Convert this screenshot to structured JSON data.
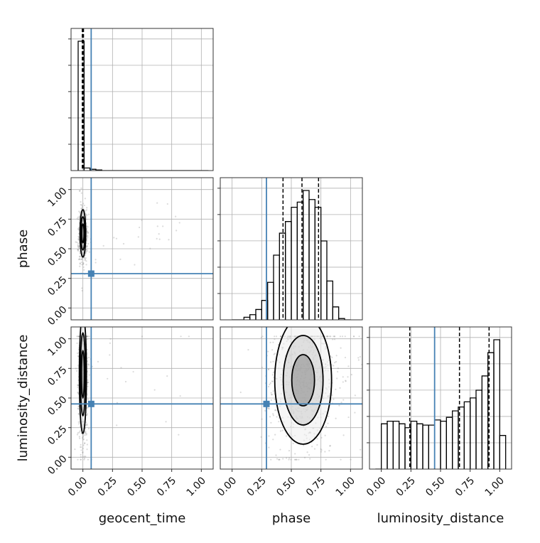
{
  "chart_data": {
    "type": "corner",
    "parameters": [
      "geocent_time",
      "phase",
      "luminosity_distance"
    ],
    "tick_values": [
      0.0,
      0.25,
      0.5,
      0.75,
      1.0
    ],
    "tick_labels": [
      "0.00",
      "0.25",
      "0.50",
      "0.75",
      "1.00"
    ],
    "axis_range": [
      -0.1,
      1.1
    ],
    "grid": true,
    "truth_color": "#4682b4",
    "hist_color": "#000000",
    "truths": {
      "geocent_time": 0.07,
      "phase": 0.29,
      "luminosity_distance": 0.45
    },
    "quantiles": {
      "geocent_time": [
        -0.005,
        0.0,
        0.005
      ],
      "phase": [
        0.43,
        0.59,
        0.73
      ],
      "luminosity_distance": [
        0.24,
        0.66,
        0.91
      ]
    },
    "histograms": {
      "geocent_time": {
        "edges": [
          -0.04,
          0.01,
          0.06,
          0.11,
          0.16,
          0.21,
          0.26,
          0.31,
          0.36,
          0.41,
          0.46,
          0.51,
          0.56,
          0.61,
          0.66,
          0.71,
          0.76,
          0.81,
          0.86,
          0.91,
          1.06
        ],
        "counts": [
          1.0,
          0.02,
          0.01,
          0.005,
          0,
          0,
          0,
          0,
          0,
          0,
          0,
          0,
          0,
          0,
          0,
          0,
          0,
          0,
          0,
          0
        ]
      },
      "phase": {
        "edges": [
          0.0,
          0.05,
          0.1,
          0.15,
          0.2,
          0.25,
          0.3,
          0.35,
          0.4,
          0.45,
          0.5,
          0.55,
          0.6,
          0.65,
          0.7,
          0.75,
          0.8,
          0.85,
          0.9,
          0.95,
          1.0
        ],
        "counts": [
          0,
          0,
          0.02,
          0.04,
          0.08,
          0.15,
          0.29,
          0.5,
          0.67,
          0.76,
          0.87,
          0.91,
          1.0,
          0.93,
          0.87,
          0.61,
          0.3,
          0.1,
          0.01,
          0
        ]
      },
      "luminosity_distance": {
        "edges": [
          -0.05,
          0.0,
          0.05,
          0.1,
          0.15,
          0.2,
          0.25,
          0.3,
          0.35,
          0.4,
          0.45,
          0.5,
          0.55,
          0.6,
          0.65,
          0.7,
          0.75,
          0.8,
          0.85,
          0.9,
          0.95,
          1.0,
          1.05
        ],
        "counts": [
          0,
          0.35,
          0.37,
          0.37,
          0.35,
          0.32,
          0.37,
          0.35,
          0.34,
          0.34,
          0.38,
          0.37,
          0.4,
          0.45,
          0.48,
          0.52,
          0.55,
          0.61,
          0.72,
          0.9,
          1.0,
          0.26
        ]
      }
    },
    "kde": {
      "phase_vs_geocent_time": {
        "center": [
          0.0,
          0.63
        ],
        "spread": [
          0.012,
          0.1
        ]
      },
      "luminosity_distance_vs_geocent_time": {
        "center": [
          0.0,
          0.7
        ],
        "spread": [
          0.015,
          0.25
        ]
      },
      "luminosity_distance_vs_phase": {
        "center": [
          0.6,
          0.65
        ],
        "spread": [
          0.12,
          0.27
        ]
      }
    }
  }
}
